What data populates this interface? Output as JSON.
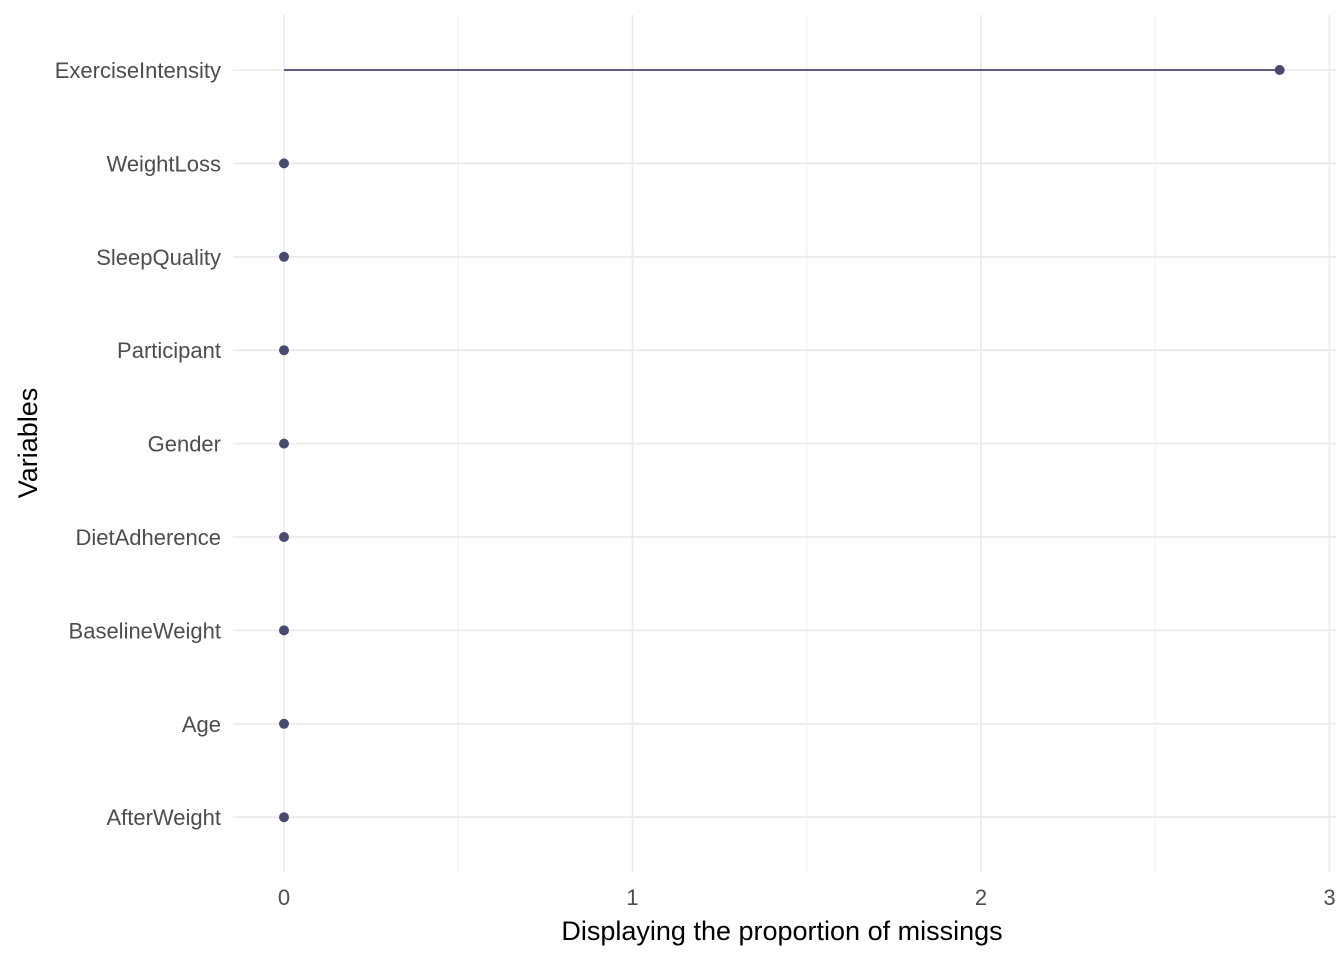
{
  "chart_data": {
    "type": "lollipop",
    "xlabel": "Displaying the proportion of missings",
    "ylabel": "Variables",
    "xlim": [
      -0.15,
      3
    ],
    "x_ticks": [
      0,
      1,
      2,
      3
    ],
    "x_minor_ticks": [
      0.5,
      1.5,
      2.5
    ],
    "grid": true,
    "legend": "none",
    "color": "#484a72",
    "categories": [
      "ExerciseIntensity",
      "WeightLoss",
      "SleepQuality",
      "Participant",
      "Gender",
      "DietAdherence",
      "BaselineWeight",
      "Age",
      "AfterWeight"
    ],
    "values": [
      2.857,
      0,
      0,
      0,
      0,
      0,
      0,
      0,
      0
    ]
  }
}
